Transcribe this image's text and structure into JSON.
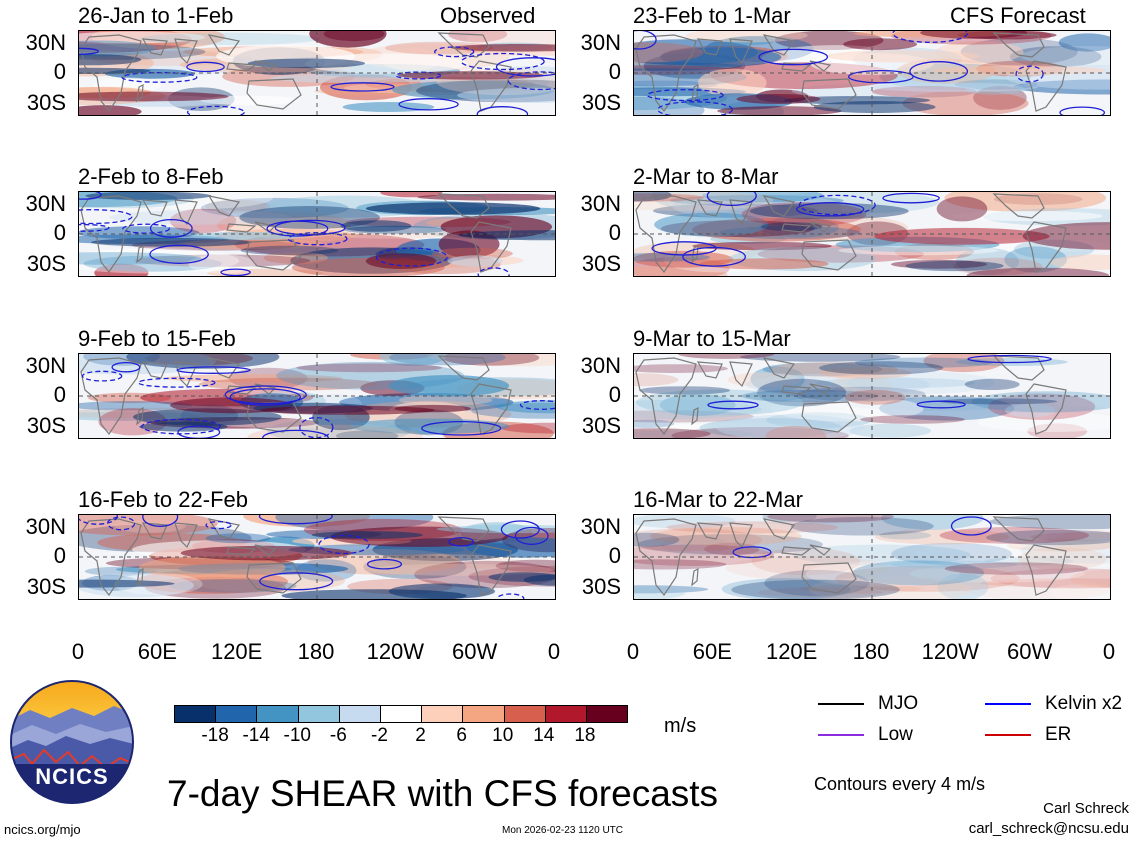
{
  "figure_title": "7-day SHEAR with CFS forecasts",
  "observed_label": "Observed",
  "forecast_label": "CFS Forecast",
  "left_panels": [
    {
      "period": "26-Jan to 1-Feb"
    },
    {
      "period": "2-Feb to 8-Feb"
    },
    {
      "period": "9-Feb to 15-Feb"
    },
    {
      "period": "16-Feb to 22-Feb"
    }
  ],
  "right_panels": [
    {
      "period": "23-Feb to 1-Mar"
    },
    {
      "period": "2-Mar to 8-Mar"
    },
    {
      "period": "9-Mar to 15-Mar"
    },
    {
      "period": "16-Mar to 22-Mar"
    }
  ],
  "y_ticks": [
    "30N",
    "0",
    "30S"
  ],
  "x_ticks": [
    "0",
    "60E",
    "120E",
    "180",
    "120W",
    "60W",
    "0"
  ],
  "colorbar": {
    "labels": [
      "-18",
      "-14",
      "-10",
      "-6",
      "-2",
      "2",
      "6",
      "10",
      "14",
      "18"
    ],
    "colors": [
      "#08306b",
      "#2166ac",
      "#4393c3",
      "#92c5de",
      "#c6dbef",
      "#ffffff",
      "#fdd0bc",
      "#f4a582",
      "#d6604d",
      "#b2182b",
      "#67001f"
    ],
    "units": "m/s"
  },
  "legend": {
    "items": [
      {
        "label": "MJO",
        "color": "#000000"
      },
      {
        "label": "Kelvin x2",
        "color": "#0000ff"
      },
      {
        "label": "Low",
        "color": "#8a2be2"
      },
      {
        "label": "ER",
        "color": "#cc0000"
      }
    ],
    "contour_note": "Contours every 4 m/s"
  },
  "author": "Carl Schreck",
  "email": "carl_schreck@ncsu.edu",
  "url": "ncics.org/mjo",
  "timestamp": "Mon 2026-02-23 1120 UTC",
  "logo_text": "NCICS"
}
